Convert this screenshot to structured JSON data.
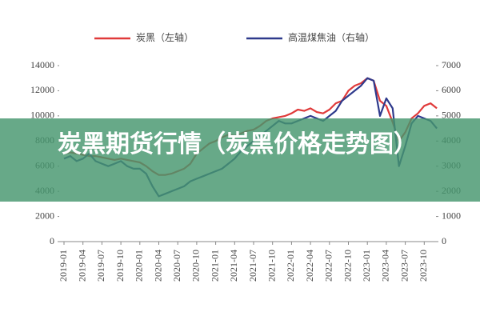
{
  "chart_data": {
    "type": "line",
    "legend": "top",
    "grid": false,
    "categories": [
      "2019-01",
      null,
      null,
      "2019-04",
      null,
      null,
      "2019-07",
      null,
      null,
      "2019-10",
      null,
      null,
      "2020-01",
      null,
      null,
      "2020-04",
      null,
      null,
      "2020-07",
      null,
      null,
      "2020-10",
      null,
      null,
      "2021-01",
      null,
      null,
      "2021-04",
      null,
      null,
      "2021-07",
      null,
      null,
      "2021-10",
      null,
      null,
      "2022-01",
      null,
      null,
      "2022-04",
      null,
      null,
      "2022-07",
      null,
      null,
      "2022-10",
      null,
      null,
      "2023-01",
      null,
      null,
      "2023-04",
      null,
      null,
      "2023-07",
      null,
      null,
      "2023-10",
      null,
      null
    ],
    "ylim": [
      0,
      14000
    ],
    "yticks": [
      0,
      2000,
      4000,
      6000,
      8000,
      10000,
      12000,
      14000
    ],
    "y2lim": [
      0,
      7000
    ],
    "y2ticks": [
      0,
      1000,
      2000,
      3000,
      4000,
      5000,
      6000,
      7000
    ],
    "series": [
      {
        "name": "炭黑（左轴）",
        "color": "#e03a3a",
        "values": [
          7000,
          7100,
          7000,
          6900,
          6800,
          6800,
          6700,
          6600,
          6500,
          6600,
          6500,
          6400,
          6300,
          6000,
          5600,
          5300,
          5300,
          5400,
          5600,
          5800,
          6200,
          7000,
          7400,
          7800,
          8000,
          8300,
          8500,
          8400,
          8600,
          8800,
          8900,
          9200,
          9600,
          9800,
          9900,
          10000,
          10200,
          10500,
          10400,
          10600,
          10300,
          10200,
          10500,
          11000,
          11200,
          12000,
          12400,
          12600,
          13000,
          12800,
          11200,
          10800,
          9500,
          8000,
          8700,
          9800,
          10200,
          10800,
          11000,
          10600
        ]
      },
      {
        "name": "高温煤焦油（右轴）",
        "color": "#2e3a8c",
        "axis": "y2",
        "values": [
          3300,
          3400,
          3200,
          3300,
          3500,
          3200,
          3100,
          3000,
          3100,
          3200,
          3000,
          2900,
          2900,
          2700,
          2200,
          1800,
          1900,
          2000,
          2100,
          2200,
          2400,
          2500,
          2600,
          2700,
          2800,
          2900,
          3100,
          3300,
          3600,
          3800,
          4000,
          4200,
          4400,
          4600,
          4800,
          4700,
          4700,
          4800,
          4900,
          5000,
          4900,
          4800,
          5000,
          5200,
          5600,
          5800,
          6000,
          6200,
          6500,
          6400,
          5000,
          5700,
          5300,
          3000,
          3800,
          4700,
          5000,
          4900,
          4800,
          4500
        ]
      }
    ]
  },
  "overlay": {
    "title": "炭黑期货行情（炭黑价格走势图）"
  }
}
